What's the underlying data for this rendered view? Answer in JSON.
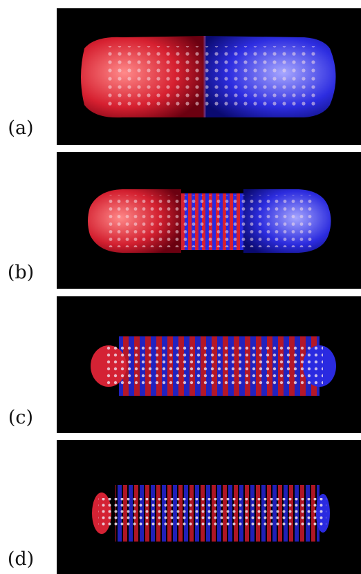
{
  "colors": {
    "background": "#000000",
    "positive": "#e0283a",
    "negative": "#2a2ae8",
    "atom": "#e9d9ea"
  },
  "panels": [
    {
      "label": "(a)"
    },
    {
      "label": "(b)"
    },
    {
      "label": "(c)"
    },
    {
      "label": "(d)"
    }
  ]
}
